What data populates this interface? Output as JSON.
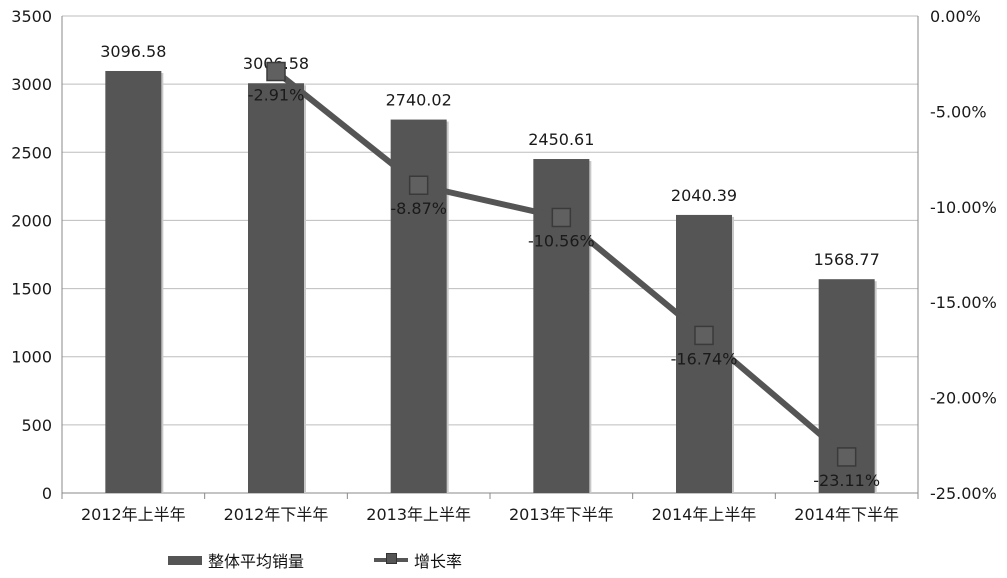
{
  "chart_data": {
    "type": "bar",
    "categories": [
      "2012年上半年",
      "2012年下半年",
      "2013年上半年",
      "2013年下半年",
      "2014年上半年",
      "2014年下半年"
    ],
    "series": [
      {
        "name": "整体平均销量",
        "type": "bar",
        "axis": "left",
        "values": [
          3096.58,
          3006.58,
          2740.02,
          2450.61,
          2040.39,
          1568.77
        ],
        "labels": [
          "3096.58",
          "3006.58",
          "2740.02",
          "2450.61",
          "2040.39",
          "1568.77"
        ]
      },
      {
        "name": "增长率",
        "type": "line",
        "axis": "right",
        "values": [
          null,
          -2.91,
          -8.87,
          -10.56,
          -16.74,
          -23.11
        ],
        "labels": [
          "",
          "-2.91%",
          "-8.87%",
          "-10.56%",
          "-16.74%",
          "-23.11%"
        ]
      }
    ],
    "y_left": {
      "min": 0,
      "max": 3500,
      "ticks": [
        "0",
        "500",
        "1000",
        "1500",
        "2000",
        "2500",
        "3000",
        "3500"
      ]
    },
    "y_right": {
      "min": -25,
      "max": 0,
      "ticks": [
        "0.00%",
        "-5.00%",
        "-10.00%",
        "-15.00%",
        "-20.00%",
        "-25.00%"
      ]
    },
    "grid": true,
    "legend_position": "bottom",
    "colors": {
      "bar": "#555555",
      "line": "#555555",
      "grid": "#bdbdbd",
      "axis": "#888888"
    }
  }
}
